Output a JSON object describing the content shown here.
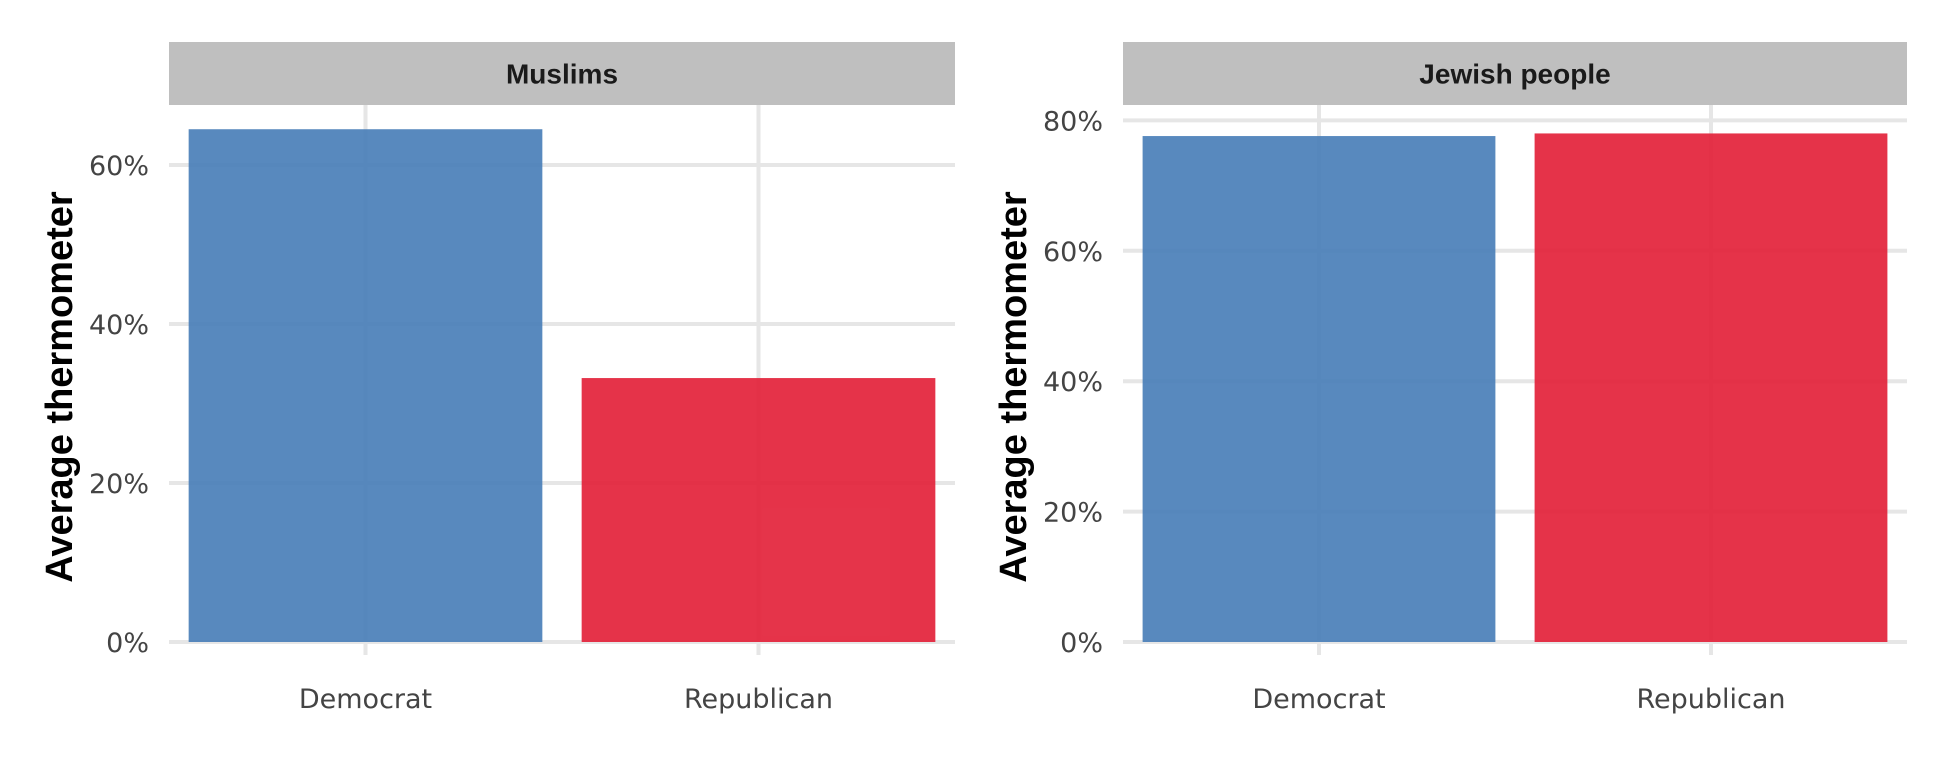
{
  "chart_data": [
    {
      "type": "bar",
      "title": "Muslims",
      "xlabel": "",
      "ylabel": "Average thermometer",
      "categories": [
        "Democrat",
        "Republican"
      ],
      "values": [
        0.645,
        0.332
      ],
      "colors": [
        "#4a7fb8",
        "#e3223a"
      ],
      "ylim": [
        0,
        0.7
      ],
      "yticks": [
        0,
        0.2,
        0.4,
        0.6
      ],
      "ytick_labels": [
        "0%",
        "20%",
        "40%",
        "60%"
      ],
      "grid": true,
      "legend": "none"
    },
    {
      "type": "bar",
      "title": "Jewish people",
      "xlabel": "",
      "ylabel": "Average thermometer",
      "categories": [
        "Democrat",
        "Republican"
      ],
      "values": [
        0.776,
        0.78
      ],
      "colors": [
        "#4a7fb8",
        "#e3223a"
      ],
      "ylim": [
        0,
        0.8
      ],
      "yticks": [
        0,
        0.2,
        0.4,
        0.6,
        0.8
      ],
      "ytick_labels": [
        "0%",
        "20%",
        "40%",
        "60%",
        "80%"
      ],
      "grid": true,
      "legend": "none"
    }
  ]
}
